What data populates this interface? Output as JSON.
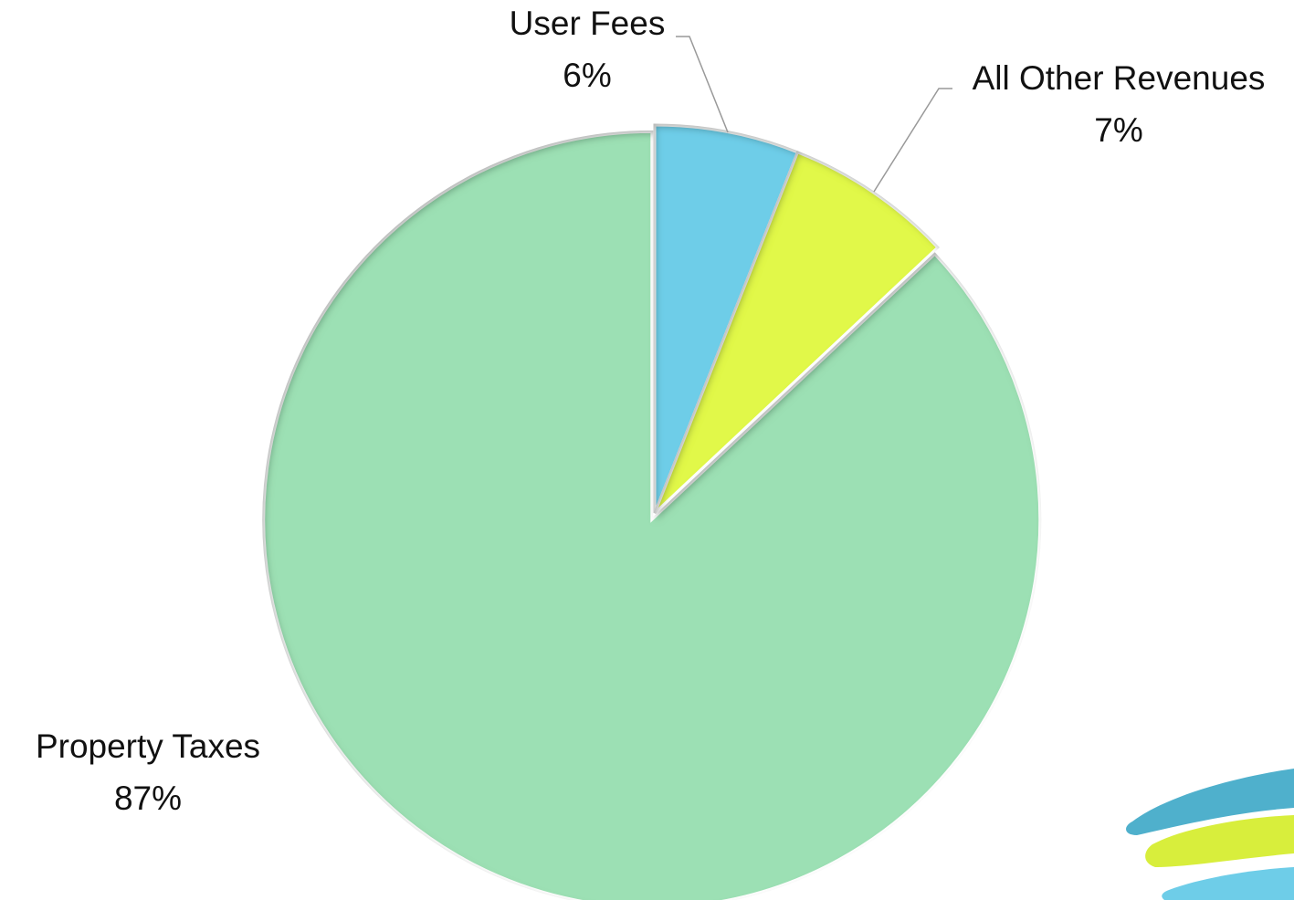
{
  "chart_data": {
    "type": "pie",
    "categories": [
      "User Fees",
      "All Other Revenues",
      "Property Taxes"
    ],
    "values": [
      6,
      7,
      87
    ],
    "value_labels": [
      "6%",
      "7%",
      "87%"
    ],
    "colors": [
      "#6ecde8",
      "#e1f84a",
      "#9ce0b4"
    ]
  }
}
